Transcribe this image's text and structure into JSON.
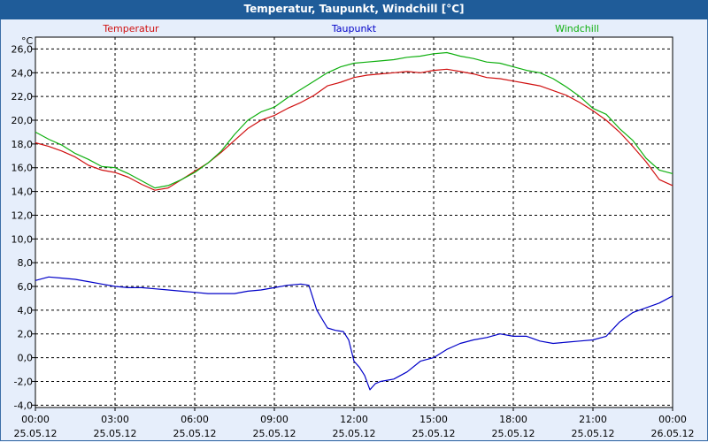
{
  "window": {
    "title": "Temperatur, Taupunkt, Windchill [°C]"
  },
  "colors": {
    "temperatur": "#d01010",
    "taupunkt": "#0000c8",
    "windchill": "#10b010",
    "background": "#e6eefb",
    "title_bar": "#1f5c99"
  },
  "chart_data": {
    "type": "line",
    "title": "Temperatur, Taupunkt, Windchill [°C]",
    "ylabel": "°C",
    "xlabel": "",
    "ylim": [
      -4.2,
      27.0
    ],
    "xlim": [
      0,
      24
    ],
    "grid": true,
    "legend_placement": "top",
    "y_ticks": [
      -4,
      -2,
      0,
      2,
      4,
      6,
      8,
      10,
      12,
      14,
      16,
      18,
      20,
      22,
      24,
      26
    ],
    "y_tick_labels": [
      "-4,0",
      "-2,0",
      "0,0",
      "2,0",
      "4,0",
      "6,0",
      "8,0",
      "10,0",
      "12,0",
      "14,0",
      "16,0",
      "18,0",
      "20,0",
      "22,0",
      "24,0",
      "26,0"
    ],
    "x_ticks": [
      0,
      3,
      6,
      9,
      12,
      15,
      18,
      21,
      24
    ],
    "x_tick_times": [
      "00:00",
      "03:00",
      "06:00",
      "09:00",
      "12:00",
      "15:00",
      "18:00",
      "21:00",
      "00:00"
    ],
    "x_tick_dates": [
      "25.05.12",
      "25.05.12",
      "25.05.12",
      "25.05.12",
      "25.05.12",
      "25.05.12",
      "25.05.12",
      "25.05.12",
      "26.05.12"
    ],
    "series": [
      {
        "name": "Temperatur",
        "color": "#d01010",
        "x": [
          0,
          0.5,
          1,
          1.5,
          2,
          2.5,
          3,
          3.5,
          4,
          4.5,
          5,
          5.5,
          6,
          6.5,
          7,
          7.5,
          8,
          8.5,
          9,
          9.5,
          10,
          10.5,
          11,
          11.5,
          12,
          12.5,
          13,
          13.5,
          14,
          14.5,
          15,
          15.5,
          16,
          16.5,
          17,
          17.5,
          18,
          18.5,
          19,
          19.5,
          20,
          20.5,
          21,
          21.5,
          22,
          22.5,
          23,
          23.5,
          24
        ],
        "values": [
          18.1,
          17.8,
          17.4,
          16.9,
          16.2,
          15.8,
          15.6,
          15.2,
          14.6,
          14.1,
          14.3,
          15.0,
          15.7,
          16.4,
          17.3,
          18.3,
          19.3,
          20.0,
          20.4,
          21.0,
          21.5,
          22.1,
          22.9,
          23.2,
          23.6,
          23.8,
          23.9,
          24.0,
          24.1,
          24.0,
          24.2,
          24.3,
          24.1,
          23.9,
          23.6,
          23.5,
          23.3,
          23.1,
          22.9,
          22.5,
          22.1,
          21.5,
          20.8,
          20.0,
          19.0,
          17.8,
          16.5,
          15.0,
          14.5
        ]
      },
      {
        "name": "Taupunkt",
        "color": "#0000c8",
        "x": [
          0,
          0.5,
          1,
          1.5,
          2,
          2.5,
          3,
          3.5,
          4,
          4.5,
          5,
          5.5,
          6,
          6.5,
          7,
          7.5,
          8,
          8.5,
          9,
          9.5,
          10,
          10.3,
          10.6,
          11,
          11.3,
          11.6,
          11.8,
          12,
          12.2,
          12.4,
          12.6,
          12.8,
          13,
          13.5,
          14,
          14.5,
          15,
          15.5,
          16,
          16.5,
          17,
          17.5,
          18,
          18.5,
          19,
          19.5,
          20,
          20.5,
          21,
          21.5,
          22,
          22.5,
          23,
          23.5,
          24
        ],
        "values": [
          6.5,
          6.8,
          6.7,
          6.6,
          6.4,
          6.2,
          6.0,
          5.9,
          5.9,
          5.8,
          5.7,
          5.6,
          5.5,
          5.4,
          5.4,
          5.4,
          5.6,
          5.7,
          5.9,
          6.1,
          6.2,
          6.1,
          4.0,
          2.5,
          2.3,
          2.2,
          1.5,
          -0.3,
          -0.8,
          -1.5,
          -2.7,
          -2.2,
          -2.0,
          -1.8,
          -1.2,
          -0.3,
          0.0,
          0.7,
          1.2,
          1.5,
          1.7,
          2.0,
          1.8,
          1.8,
          1.4,
          1.2,
          1.3,
          1.4,
          1.5,
          1.8,
          3.0,
          3.8,
          4.2,
          4.6,
          5.2
        ]
      },
      {
        "name": "Windchill",
        "color": "#10b010",
        "x": [
          0,
          0.5,
          1,
          1.5,
          2,
          2.5,
          3,
          3.5,
          4,
          4.5,
          5,
          5.5,
          6,
          6.5,
          7,
          7.5,
          8,
          8.5,
          9,
          9.5,
          10,
          10.5,
          11,
          11.5,
          12,
          12.5,
          13,
          13.5,
          14,
          14.5,
          15,
          15.5,
          16,
          16.5,
          17,
          17.5,
          18,
          18.5,
          19,
          19.5,
          20,
          20.5,
          21,
          21.5,
          22,
          22.5,
          23,
          23.5,
          24
        ],
        "values": [
          19.0,
          18.4,
          17.9,
          17.2,
          16.7,
          16.1,
          16.0,
          15.5,
          14.9,
          14.3,
          14.5,
          15.0,
          15.6,
          16.4,
          17.4,
          18.8,
          20.0,
          20.7,
          21.1,
          21.9,
          22.6,
          23.3,
          24.0,
          24.5,
          24.8,
          24.9,
          25.0,
          25.1,
          25.3,
          25.4,
          25.6,
          25.7,
          25.4,
          25.2,
          24.9,
          24.8,
          24.5,
          24.2,
          24.0,
          23.5,
          22.8,
          22.0,
          21.0,
          20.5,
          19.3,
          18.3,
          16.8,
          15.8,
          15.5
        ]
      }
    ]
  }
}
